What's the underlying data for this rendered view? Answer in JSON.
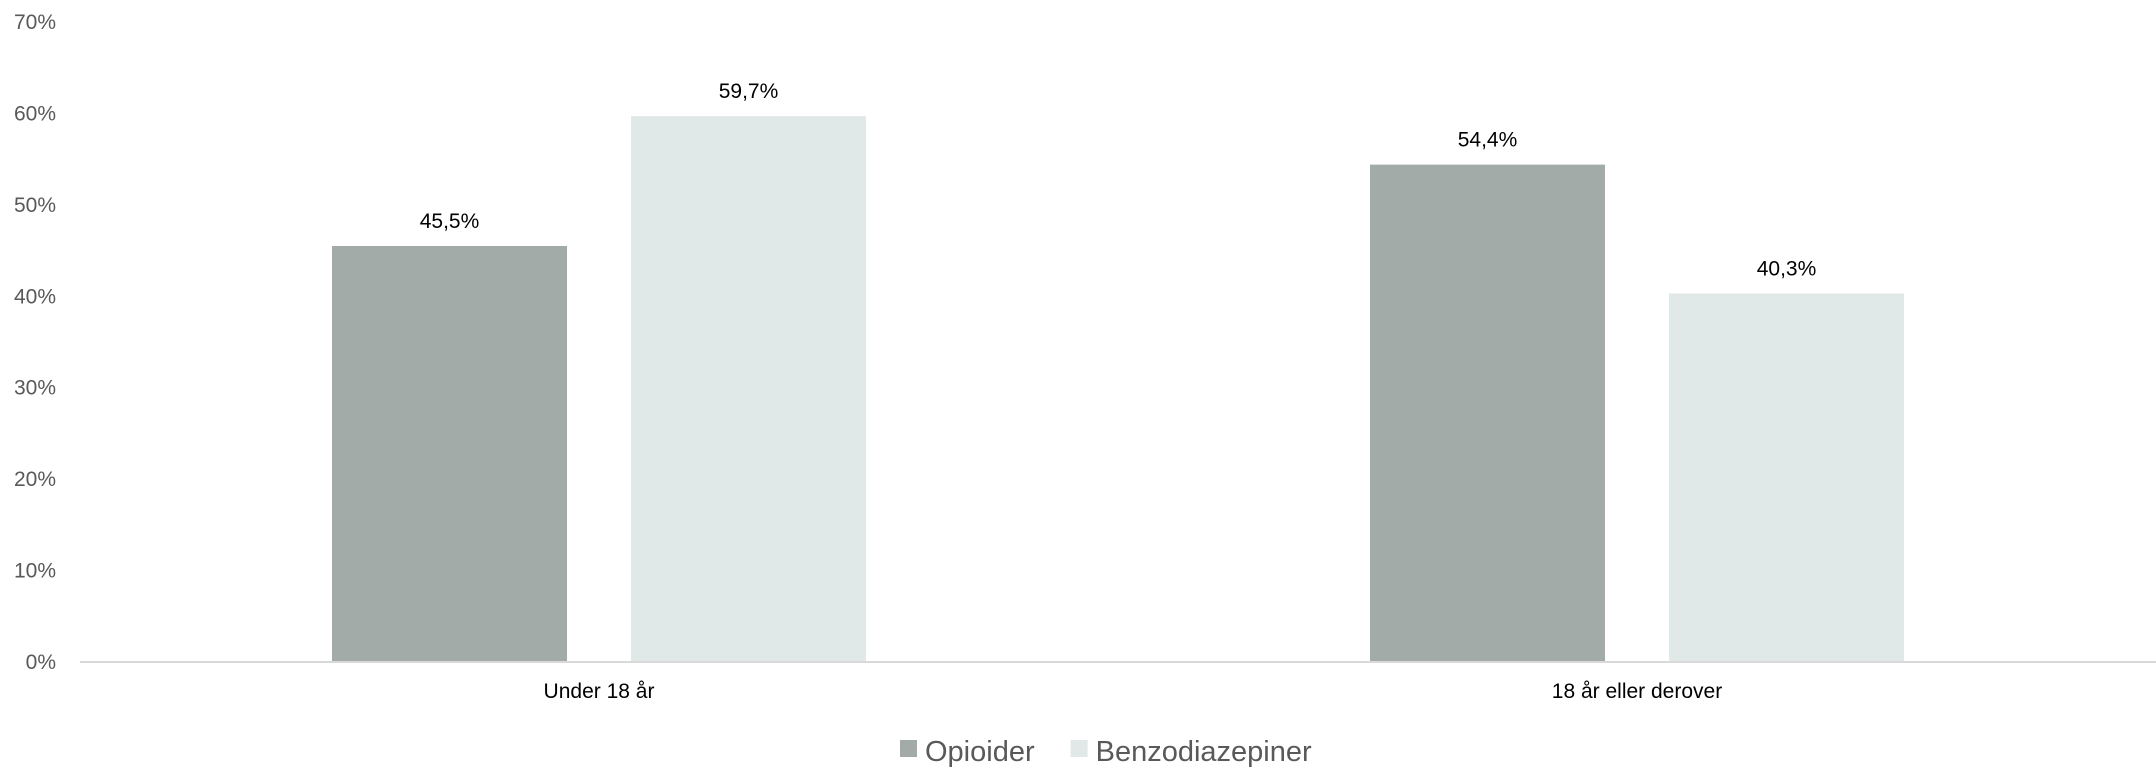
{
  "chart_data": {
    "type": "bar",
    "categories": [
      "Under 18 år",
      "18 år eller derover"
    ],
    "series": [
      {
        "name": "Opioider",
        "values": [
          45.5,
          54.4
        ],
        "labels": [
          "45,5%",
          "54,4%"
        ],
        "color": "#a2aba8"
      },
      {
        "name": "Benzodiazepiner",
        "values": [
          59.7,
          40.3
        ],
        "labels": [
          "59,7%",
          "40,3%"
        ],
        "color": "#e0e8e8"
      }
    ],
    "ylim": [
      0,
      70
    ],
    "yticks": [
      0,
      10,
      20,
      30,
      40,
      50,
      60,
      70
    ],
    "ytick_labels": [
      "0%",
      "10%",
      "20%",
      "30%",
      "40%",
      "50%",
      "60%",
      "70%"
    ],
    "grid": false,
    "legend_position": "bottom",
    "axis_color": "#d9d9d9"
  }
}
